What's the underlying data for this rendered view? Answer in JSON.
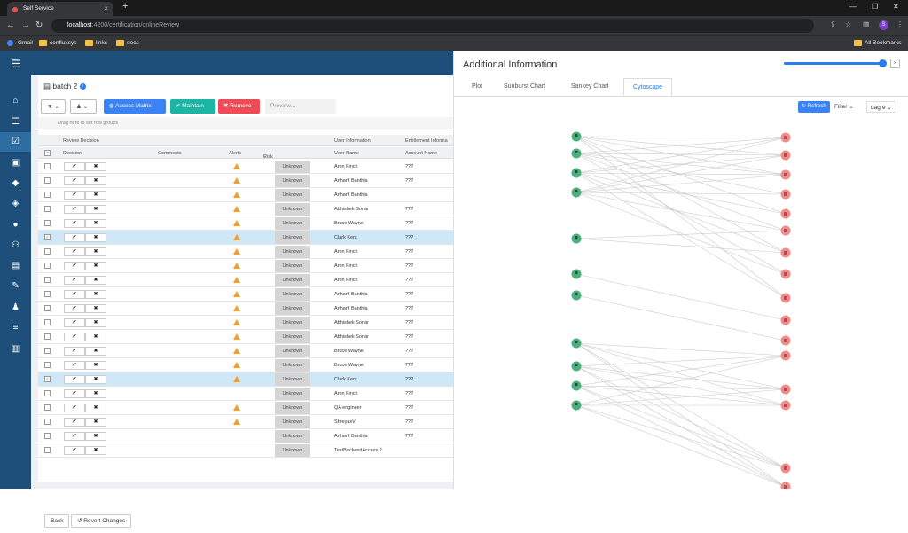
{
  "browser": {
    "tab_title": "Self Service",
    "url_host": "localhost",
    "url_path": ":4200/certification/onlineReview",
    "bookmarks": [
      "Gmail",
      "confluxsys",
      "links",
      "docs"
    ],
    "all_bookmarks": "All Bookmarks",
    "profile_initial": "S"
  },
  "page": {
    "title": "batch 2",
    "info_glyph": "i"
  },
  "toolbar": {
    "access_matrix": "Access Matrix",
    "maintain": "Maintain",
    "remove": "Remove",
    "preview": "Preview..."
  },
  "grid": {
    "group_hint": "Drag here to set row groups",
    "group_headers": [
      "Review Decision",
      "User Information",
      "Entitlement Informa"
    ],
    "columns": [
      "Decision",
      "Comments",
      "Alerts",
      "Risk Rating",
      "User Name",
      "Account Name"
    ],
    "sort_glyph": "↓",
    "rows": [
      {
        "sel": false,
        "alert": true,
        "risk": "Unknown",
        "user": "Aron Finch",
        "acct": "???"
      },
      {
        "sel": false,
        "alert": true,
        "risk": "Unknown",
        "user": "Arihant Banthia",
        "acct": "???"
      },
      {
        "sel": false,
        "alert": true,
        "risk": "Unknown",
        "user": "Arihant Banthia",
        "acct": ""
      },
      {
        "sel": false,
        "alert": true,
        "risk": "Unknown",
        "user": "Abhishek Sonar",
        "acct": "???"
      },
      {
        "sel": false,
        "alert": true,
        "risk": "Unknown",
        "user": "Bruce Wayne",
        "acct": "???"
      },
      {
        "sel": true,
        "alert": true,
        "risk": "Unknown",
        "user": "Clark Kent",
        "acct": "???"
      },
      {
        "sel": false,
        "alert": true,
        "risk": "Unknown",
        "user": "Aron Finch",
        "acct": "???"
      },
      {
        "sel": false,
        "alert": true,
        "risk": "Unknown",
        "user": "Aron Finch",
        "acct": "???"
      },
      {
        "sel": false,
        "alert": true,
        "risk": "Unknown",
        "user": "Aron Finch",
        "acct": "???"
      },
      {
        "sel": false,
        "alert": true,
        "risk": "Unknown",
        "user": "Arihant Banthia",
        "acct": "???"
      },
      {
        "sel": false,
        "alert": true,
        "risk": "Unknown",
        "user": "Arihant Banthia",
        "acct": "???"
      },
      {
        "sel": false,
        "alert": true,
        "risk": "Unknown",
        "user": "Abhishek Sonar",
        "acct": "???"
      },
      {
        "sel": false,
        "alert": true,
        "risk": "Unknown",
        "user": "Abhishek Sonar",
        "acct": "???"
      },
      {
        "sel": false,
        "alert": true,
        "risk": "Unknown",
        "user": "Bruce Wayne",
        "acct": "???"
      },
      {
        "sel": false,
        "alert": true,
        "risk": "Unknown",
        "user": "Bruce Wayne",
        "acct": "???"
      },
      {
        "sel": true,
        "alert": true,
        "risk": "Unknown",
        "user": "Clark Kent",
        "acct": "???"
      },
      {
        "sel": false,
        "alert": false,
        "risk": "Unknown",
        "user": "Aron Finch",
        "acct": "???"
      },
      {
        "sel": false,
        "alert": true,
        "risk": "Unknown",
        "user": "QA engineer",
        "acct": "???"
      },
      {
        "sel": false,
        "alert": true,
        "risk": "Unknown",
        "user": "ShreyasV",
        "acct": "???"
      },
      {
        "sel": false,
        "alert": false,
        "risk": "Unknown",
        "user": "Arihant Banthia",
        "acct": "???"
      },
      {
        "sel": false,
        "alert": false,
        "risk": "Unknown",
        "user": "TestBackendAccess 2",
        "acct": ""
      }
    ],
    "check_glyph": "✔",
    "cross_glyph": "✖",
    "selected_glyph": "✓"
  },
  "footer": {
    "back": "Back",
    "revert": "Revert Changes"
  },
  "panel": {
    "title": "Additional Information",
    "close_glyph": "×",
    "zoom_fraction": 0.95,
    "tabs": [
      "Plot",
      "Sunburst Chart",
      "Sankey Chart",
      "Cytoscape"
    ],
    "active_tab": 3,
    "refresh": "Refresh",
    "filter": "Filter",
    "layout": "dagre"
  },
  "graph": {
    "left_nodes": [
      "",
      "",
      "",
      "",
      "",
      "",
      "",
      "",
      "",
      "",
      "",
      ""
    ],
    "right_nodes": [
      "",
      "",
      "",
      "",
      "",
      "",
      "",
      "",
      "",
      "",
      "",
      "",
      "",
      "",
      "",
      "",
      ""
    ],
    "colors": {
      "user": "#4caf7d",
      "ent": "#f08c8c"
    }
  }
}
